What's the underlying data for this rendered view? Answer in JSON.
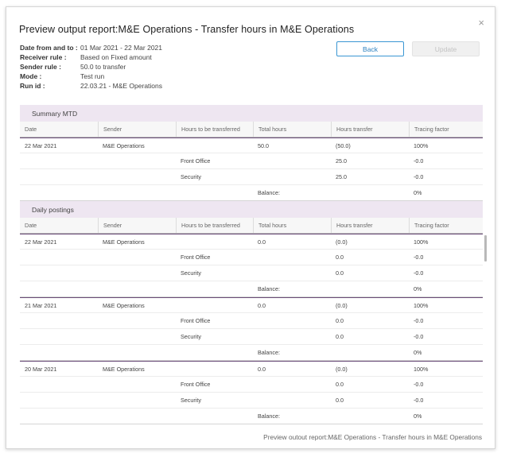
{
  "dialog": {
    "title": "Preview output report:M&E Operations - Transfer hours in M&E Operations",
    "close_glyph": "×",
    "meta": [
      {
        "label": "Date from and to :",
        "value": "01 Mar 2021 - 22 Mar 2021"
      },
      {
        "label": "Receiver rule :",
        "value": "Based on Fixed amount"
      },
      {
        "label": "Sender rule :",
        "value": "50.0 to transfer"
      },
      {
        "label": "Mode :",
        "value": "Test run"
      },
      {
        "label": "Run id :",
        "value": "22.03.21 - M&E Operations"
      }
    ],
    "buttons": {
      "back": "Back",
      "update": "Update"
    },
    "footer": "Preview outout report:M&E Operations - Transfer hours in M&E Operations"
  },
  "columns": [
    "Date",
    "Sender",
    "Hours to be transferred",
    "Total hours",
    "Hours transfer",
    "Tracing factor"
  ],
  "summary": {
    "title": "Summary MTD",
    "rows": [
      {
        "date": "22 Mar 2021",
        "sender": "M&E Operations",
        "hours_to_transfer": "",
        "total": "50.0",
        "transfer": "(50.0)",
        "factor": "100%"
      },
      {
        "date": "",
        "sender": "",
        "hours_to_transfer": "Front Office",
        "total": "",
        "transfer": "25.0",
        "factor": "-0.0"
      },
      {
        "date": "",
        "sender": "",
        "hours_to_transfer": "Security",
        "total": "",
        "transfer": "25.0",
        "factor": "-0.0"
      },
      {
        "date": "",
        "sender": "",
        "hours_to_transfer": "",
        "total": "Balance:",
        "transfer": "",
        "factor": "0%"
      }
    ]
  },
  "daily": {
    "title": "Daily postings",
    "rows": [
      {
        "date": "22 Mar 2021",
        "sender": "M&E Operations",
        "hours_to_transfer": "",
        "total": "0.0",
        "transfer": "(0.0)",
        "factor": "100%"
      },
      {
        "date": "",
        "sender": "",
        "hours_to_transfer": "Front Office",
        "total": "",
        "transfer": "0.0",
        "factor": "-0.0"
      },
      {
        "date": "",
        "sender": "",
        "hours_to_transfer": "Security",
        "total": "",
        "transfer": "0.0",
        "factor": "-0.0"
      },
      {
        "date": "",
        "sender": "",
        "hours_to_transfer": "",
        "total": "Balance:",
        "transfer": "",
        "factor": "0%"
      },
      {
        "date": "21 Mar 2021",
        "sender": "M&E Operations",
        "hours_to_transfer": "",
        "total": "0.0",
        "transfer": "(0.0)",
        "factor": "100%"
      },
      {
        "date": "",
        "sender": "",
        "hours_to_transfer": "Front Office",
        "total": "",
        "transfer": "0.0",
        "factor": "-0.0"
      },
      {
        "date": "",
        "sender": "",
        "hours_to_transfer": "Security",
        "total": "",
        "transfer": "0.0",
        "factor": "-0.0"
      },
      {
        "date": "",
        "sender": "",
        "hours_to_transfer": "",
        "total": "Balance:",
        "transfer": "",
        "factor": "0%"
      },
      {
        "date": "20 Mar 2021",
        "sender": "M&E Operations",
        "hours_to_transfer": "",
        "total": "0.0",
        "transfer": "(0.0)",
        "factor": "100%"
      },
      {
        "date": "",
        "sender": "",
        "hours_to_transfer": "Front Office",
        "total": "",
        "transfer": "0.0",
        "factor": "-0.0"
      },
      {
        "date": "",
        "sender": "",
        "hours_to_transfer": "Security",
        "total": "",
        "transfer": "0.0",
        "factor": "-0.0"
      },
      {
        "date": "",
        "sender": "",
        "hours_to_transfer": "",
        "total": "Balance:",
        "transfer": "",
        "factor": "0%"
      }
    ]
  },
  "colors": {
    "accent": "#3a96d3",
    "section_bg": "#eee6f1",
    "group_divider": "#6a4c78"
  }
}
